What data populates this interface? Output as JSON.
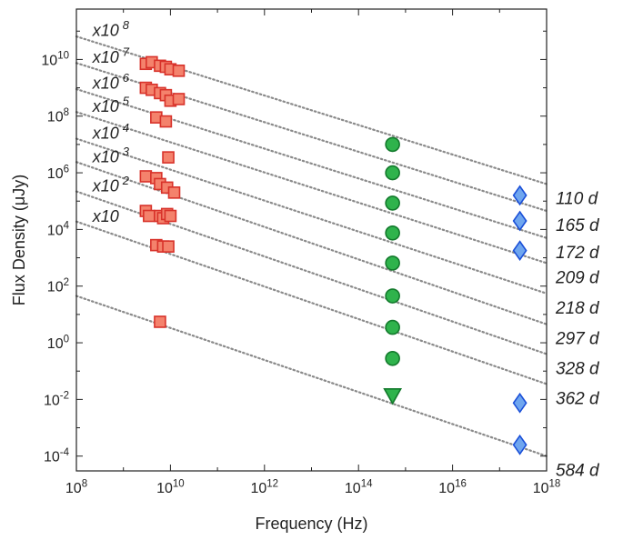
{
  "chart_data": {
    "type": "scatter",
    "xlabel": "Frequency (Hz)",
    "ylabel": "Flux Density (μJy)",
    "x_scale": "log",
    "y_scale": "log",
    "xlim": [
      100000000.0,
      1e+18
    ],
    "ylim": [
      3e-05,
      600000000000.0
    ],
    "x_ticks": [
      {
        "value": 100000000.0,
        "base": "10",
        "exp": "8"
      },
      {
        "value": 10000000000.0,
        "base": "10",
        "exp": "10"
      },
      {
        "value": 1000000000000.0,
        "base": "10",
        "exp": "12"
      },
      {
        "value": 100000000000000.0,
        "base": "10",
        "exp": "14"
      },
      {
        "value": 1e+16,
        "base": "10",
        "exp": "16"
      },
      {
        "value": 1e+18,
        "base": "10",
        "exp": "18"
      }
    ],
    "y_ticks": [
      {
        "value": 0.0001,
        "base": "10",
        "exp": "-4"
      },
      {
        "value": 0.01,
        "base": "10",
        "exp": "-2"
      },
      {
        "value": 1,
        "base": "10",
        "exp": "0"
      },
      {
        "value": 100.0,
        "base": "10",
        "exp": "2"
      },
      {
        "value": 10000.0,
        "base": "10",
        "exp": "4"
      },
      {
        "value": 1000000.0,
        "base": "10",
        "exp": "6"
      },
      {
        "value": 100000000.0,
        "base": "10",
        "exp": "8"
      },
      {
        "value": 10000000000.0,
        "base": "10",
        "exp": "10"
      }
    ],
    "grid": false,
    "colors": {
      "radio_fill": "#f4826c",
      "radio_edge": "#d8322a",
      "optical_fill": "#2fb34c",
      "optical_edge": "#137a2c",
      "xray_fill": "#6fa6ef",
      "xray_edge": "#1a4fd8",
      "model_line": "#8a8a8a"
    },
    "model_lines": [
      {
        "epoch": "110 d",
        "scale_label": "x10",
        "scale_exp": "8",
        "points": [
          [
            100000000.0,
            65000000000.0
          ],
          [
            1e+18,
            400000.0
          ]
        ]
      },
      {
        "epoch": "165 d",
        "scale_label": "x10",
        "scale_exp": "7",
        "points": [
          [
            100000000.0,
            7500000000.0
          ],
          [
            1e+18,
            45000.0
          ]
        ]
      },
      {
        "epoch": "172 d",
        "scale_label": "x10",
        "scale_exp": "6",
        "points": [
          [
            100000000.0,
            900000000.0
          ],
          [
            1e+18,
            5000.0
          ]
        ]
      },
      {
        "epoch": "209 d",
        "scale_label": "x10",
        "scale_exp": "5",
        "points": [
          [
            100000000.0,
            140000000.0
          ],
          [
            1e+18,
            650.0
          ]
        ]
      },
      {
        "epoch": "218 d",
        "scale_label": "x10",
        "scale_exp": "4",
        "points": [
          [
            100000000.0,
            16000000.0
          ],
          [
            1e+18,
            55.0
          ]
        ]
      },
      {
        "epoch": "297 d",
        "scale_label": "x10",
        "scale_exp": "3",
        "points": [
          [
            100000000.0,
            2400000.0
          ],
          [
            1e+18,
            4.5
          ]
        ]
      },
      {
        "epoch": "328 d",
        "scale_label": "x10",
        "scale_exp": "2",
        "points": [
          [
            100000000.0,
            220000.0
          ],
          [
            1e+18,
            0.4
          ]
        ]
      },
      {
        "epoch": "362 d",
        "scale_label": "x10",
        "scale_exp": "",
        "points": [
          [
            100000000.0,
            19000.0
          ],
          [
            1e+18,
            0.035
          ]
        ]
      },
      {
        "epoch": "584 d",
        "scale_label": "",
        "scale_exp": "",
        "points": [
          [
            100000000.0,
            45.0
          ],
          [
            1e+18,
            0.0001
          ]
        ]
      }
    ],
    "series": [
      {
        "marker": "square",
        "points": [
          [
            3000000000.0,
            7000000000.0
          ],
          [
            4000000000.0,
            8000000000.0
          ],
          [
            6000000000.0,
            6000000000.0
          ],
          [
            8000000000.0,
            5500000000.0
          ],
          [
            10000000000.0,
            4500000000.0
          ],
          [
            15000000000.0,
            4000000000.0
          ],
          [
            3000000000.0,
            1000000000.0
          ],
          [
            4000000000.0,
            850000000.0
          ],
          [
            6000000000.0,
            650000000.0
          ],
          [
            8000000000.0,
            550000000.0
          ],
          [
            10000000000.0,
            350000000.0
          ],
          [
            15000000000.0,
            400000000.0
          ],
          [
            5000000000.0,
            90000000.0
          ],
          [
            8000000000.0,
            65000000.0
          ],
          [
            9000000000.0,
            3500000.0
          ],
          [
            3000000000.0,
            750000.0
          ],
          [
            5000000000.0,
            650000.0
          ],
          [
            6000000000.0,
            400000.0
          ],
          [
            8500000000.0,
            300000.0
          ],
          [
            12000000000.0,
            200000.0
          ],
          [
            3000000000.0,
            45000.0
          ],
          [
            3500000000.0,
            30000.0
          ],
          [
            6000000000.0,
            30000.0
          ],
          [
            7000000000.0,
            25000.0
          ],
          [
            8500000000.0,
            35000.0
          ],
          [
            10000000000.0,
            30000.0
          ],
          [
            5000000000.0,
            2800.0
          ],
          [
            7000000000.0,
            2500.0
          ],
          [
            9000000000.0,
            2500.0
          ],
          [
            6000000000.0,
            5.5
          ]
        ]
      },
      {
        "marker": "circle",
        "points": [
          [
            530000000000000.0,
            10000000.0
          ],
          [
            530000000000000.0,
            1000000.0
          ],
          [
            530000000000000.0,
            85000.0
          ],
          [
            530000000000000.0,
            7500.0
          ],
          [
            530000000000000.0,
            650.0
          ],
          [
            530000000000000.0,
            45.0
          ],
          [
            530000000000000.0,
            3.5
          ],
          [
            530000000000000.0,
            0.28
          ]
        ]
      },
      {
        "marker": "triangle-down",
        "points": [
          [
            530000000000000.0,
            0.014
          ]
        ]
      },
      {
        "marker": "diamond",
        "points": [
          [
            2.7e+17,
            160000.0
          ],
          [
            2.7e+17,
            20000.0
          ],
          [
            2.7e+17,
            1800.0
          ],
          [
            2.7e+17,
            0.0075
          ],
          [
            2.7e+17,
            0.00025
          ]
        ]
      }
    ]
  }
}
